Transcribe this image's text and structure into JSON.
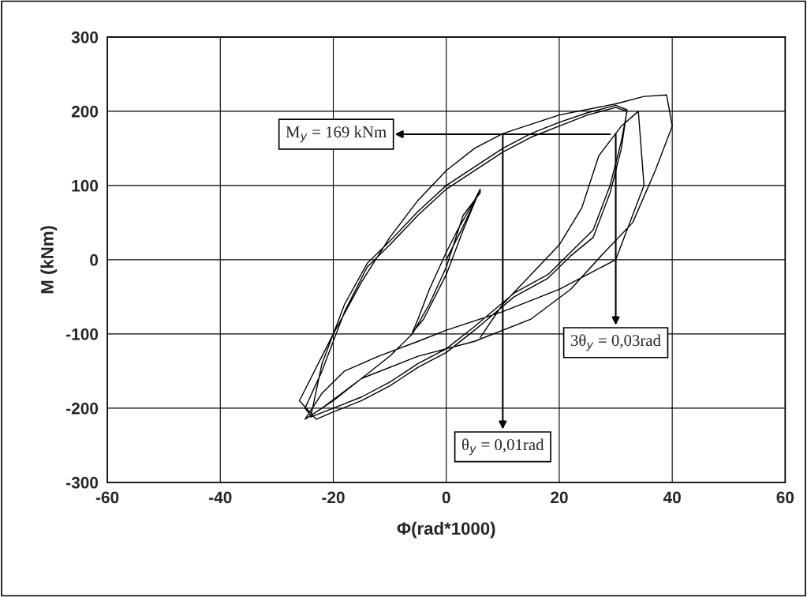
{
  "chart_data": {
    "type": "line",
    "xlabel": "Φ(rad*1000)",
    "ylabel": "M (kNm)",
    "xlim": [
      -60,
      60
    ],
    "xticks": [
      -60,
      -40,
      -20,
      0,
      20,
      40,
      60
    ],
    "ylim": [
      -300,
      300
    ],
    "yticks": [
      -300,
      -200,
      -100,
      0,
      100,
      200,
      300
    ],
    "grid": true,
    "legend": false,
    "marker": "none",
    "line_style": "solid",
    "series": [
      {
        "color": "#000000",
        "x": [
          0,
          3,
          6,
          5,
          2,
          0,
          -3,
          -5,
          -6,
          -4,
          0,
          3,
          6,
          6,
          3,
          0,
          -3,
          -6,
          -10,
          -15,
          -20,
          -24,
          -25,
          -22,
          -18,
          -14,
          -10,
          -5,
          0,
          5,
          10,
          15,
          20,
          25,
          30,
          32,
          31,
          29,
          26,
          22,
          18,
          12,
          5,
          0,
          -5,
          -10,
          -15,
          -20,
          -24,
          -22,
          -18,
          -14,
          -10,
          -5,
          0,
          5,
          10,
          15,
          20,
          25,
          30,
          32,
          31,
          29,
          26,
          22,
          18,
          12,
          5,
          0,
          -5,
          -10,
          -15,
          -20,
          -23,
          -26,
          -20,
          -15,
          -10,
          -5,
          0,
          5,
          10,
          20,
          30,
          35,
          39,
          40,
          37,
          33,
          28,
          22,
          15,
          5,
          -5,
          -15,
          -22,
          -25,
          -22,
          -18,
          -12,
          -5,
          0,
          10,
          20,
          30,
          35,
          34,
          31,
          27,
          24,
          20,
          15,
          10,
          6
        ],
        "values": [
          0,
          45,
          95,
          80,
          40,
          10,
          -40,
          -80,
          -98,
          -80,
          -20,
          40,
          95,
          90,
          60,
          -10,
          -60,
          -100,
          -130,
          -160,
          -190,
          -210,
          -200,
          -150,
          -70,
          -10,
          20,
          60,
          95,
          120,
          145,
          165,
          180,
          195,
          205,
          200,
          160,
          100,
          40,
          10,
          -20,
          -45,
          -90,
          -120,
          -140,
          -165,
          -185,
          -200,
          -212,
          -140,
          -60,
          -5,
          25,
          65,
          100,
          125,
          150,
          170,
          185,
          198,
          208,
          202,
          150,
          90,
          30,
          5,
          -25,
          -50,
          -95,
          -125,
          -145,
          -170,
          -190,
          -205,
          -215,
          -190,
          -100,
          -30,
          30,
          80,
          120,
          150,
          170,
          195,
          210,
          220,
          222,
          180,
          120,
          50,
          10,
          -40,
          -80,
          -110,
          -130,
          -160,
          -200,
          -215,
          -180,
          -150,
          -130,
          -110,
          -95,
          -70,
          -40,
          0,
          100,
          200,
          180,
          140,
          70,
          20,
          -20,
          -60,
          -105
        ]
      }
    ],
    "annotations": [
      {
        "text": "M$_{y}$ = 169 kNm",
        "x": 29,
        "y": 169
      },
      {
        "text": "θ$_{y}$ = 0,01rad",
        "x": 10,
        "y": 169
      },
      {
        "text": "3θ$_{y}$ = 0,03rad",
        "x": 30,
        "y": 169
      }
    ]
  }
}
